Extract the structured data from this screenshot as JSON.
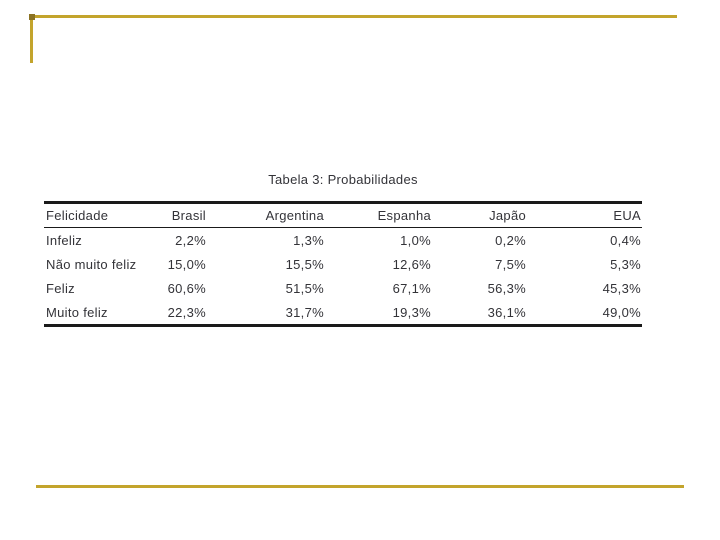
{
  "slide": {
    "accent_color": "#C3A42C",
    "corner_accent_color": "#8C7323",
    "background_color": "#ffffff",
    "text_color": "#333338",
    "rule_color": "#1a1a1a"
  },
  "table": {
    "title": "Tabela 3: Probabilidades",
    "columns": [
      "Felicidade",
      "Brasil",
      "Argentina",
      "Espanha",
      "Japão",
      "EUA"
    ],
    "rows": [
      [
        "Infeliz",
        "2,2%",
        "1,3%",
        "1,0%",
        "0,2%",
        "0,4%"
      ],
      [
        "Não muito feliz",
        "15,0%",
        "15,5%",
        "12,6%",
        "7,5%",
        "5,3%"
      ],
      [
        "Feliz",
        "60,6%",
        "51,5%",
        "67,1%",
        "56,3%",
        "45,3%"
      ],
      [
        "Muito feliz",
        "22,3%",
        "31,7%",
        "19,3%",
        "36,1%",
        "49,0%"
      ]
    ]
  },
  "chart_data": {
    "type": "table",
    "title": "Tabela 3: Probabilidades",
    "categories": [
      "Infeliz",
      "Não muito feliz",
      "Feliz",
      "Muito feliz"
    ],
    "series": [
      {
        "name": "Brasil",
        "values": [
          2.2,
          15.0,
          60.6,
          22.3
        ]
      },
      {
        "name": "Argentina",
        "values": [
          1.3,
          15.5,
          51.5,
          31.7
        ]
      },
      {
        "name": "Espanha",
        "values": [
          1.0,
          12.6,
          67.1,
          19.3
        ]
      },
      {
        "name": "Japão",
        "values": [
          0.2,
          7.5,
          56.3,
          36.1
        ]
      },
      {
        "name": "EUA",
        "values": [
          0.4,
          5.3,
          45.3,
          49.0
        ]
      }
    ],
    "unit": "%",
    "row_header_label": "Felicidade"
  }
}
